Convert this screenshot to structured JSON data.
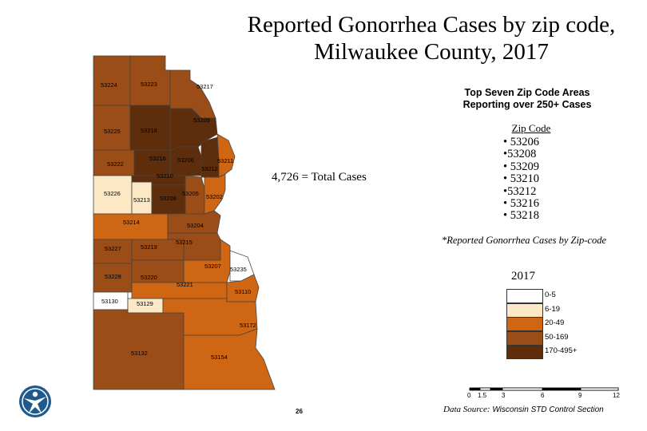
{
  "title_line1": "Reported Gonorrhea Cases by zip code,",
  "title_line2": "Milwaukee County, 2017",
  "subtitle_line1": "Top Seven Zip Code Areas",
  "subtitle_line2": "Reporting over 250+ Cases",
  "zip_header": "Zip Code",
  "top_zip_codes": [
    "• 53206",
    "•53208",
    "• 53209",
    "• 53210",
    "•53212",
    "• 53216",
    "• 53218"
  ],
  "total_cases": "4,726 = Total Cases",
  "note": "*Reported Gonorrhea Cases by Zip-code",
  "year": "2017",
  "legend": [
    {
      "label": "0-5",
      "color": "#ffffff"
    },
    {
      "label": "6-19",
      "color": "#fce8c4"
    },
    {
      "label": "20-49",
      "color": "#cf6614"
    },
    {
      "label": "50-169",
      "color": "#9a4d16"
    },
    {
      "label": "170-495+",
      "color": "#5e2d0b"
    }
  ],
  "scale_labels": [
    "0",
    "1.5",
    "3",
    "6",
    "9",
    "12"
  ],
  "source_prefix": "Data Source:",
  "source_name": "Wisconsin STD Control Section",
  "page_number": "26",
  "zip_labels": [
    "53224",
    "53223",
    "53217",
    "53209",
    "53225",
    "53218",
    "53222",
    "53216",
    "53206",
    "53211",
    "53212",
    "53210",
    "53226",
    "53213",
    "53208",
    "53205",
    "53202",
    "53214",
    "53204",
    "53227",
    "53219",
    "53215",
    "53207",
    "53235",
    "53228",
    "53220",
    "53221",
    "53110",
    "53130",
    "53129",
    "53172",
    "53132",
    "53154"
  ]
}
